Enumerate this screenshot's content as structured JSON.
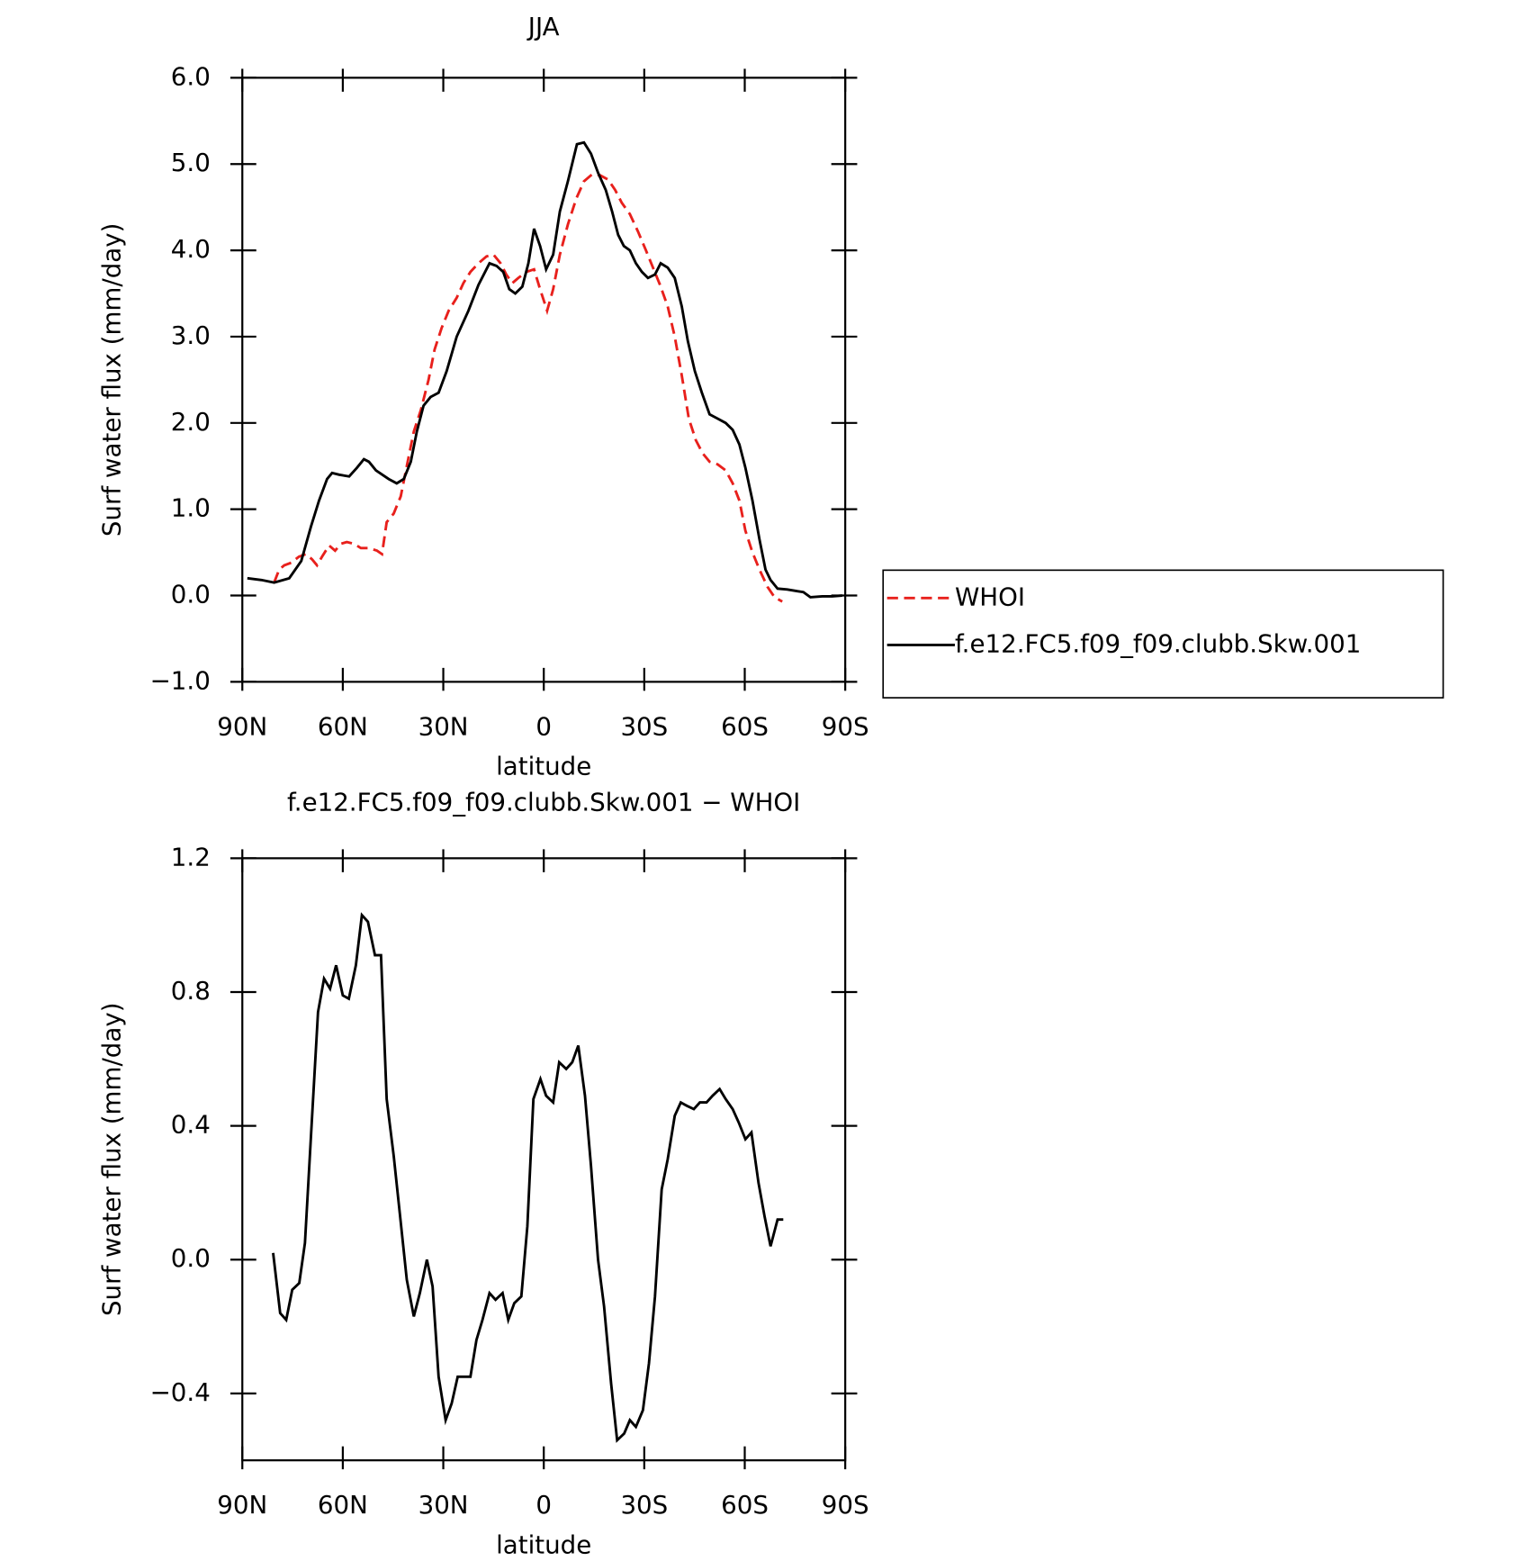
{
  "chart_data": [
    {
      "type": "line",
      "title": "JJA",
      "xlabel": "latitude",
      "ylabel": "Surf water flux (mm/day)",
      "xlim": [
        90,
        -90
      ],
      "xticks": [
        {
          "value": 90,
          "label": "90N"
        },
        {
          "value": 60,
          "label": "60N"
        },
        {
          "value": 30,
          "label": "30N"
        },
        0,
        {
          "value": -30,
          "label": "30S"
        },
        {
          "value": -60,
          "label": "60S"
        },
        {
          "value": -90,
          "label": "90S"
        }
      ],
      "ylim": [
        -1,
        6
      ],
      "yticks": [
        {
          "value": -1,
          "label": "−1.0"
        },
        {
          "value": 0,
          "label": "0.0"
        },
        {
          "value": 1,
          "label": "1.0"
        },
        {
          "value": 2,
          "label": "2.0"
        },
        {
          "value": 3,
          "label": "3.0"
        },
        {
          "value": 4,
          "label": "4.0"
        },
        {
          "value": 5,
          "label": "5.0"
        },
        {
          "value": 6,
          "label": "6.0"
        }
      ],
      "legend": "outside-right",
      "series": [
        {
          "name": "WHOI",
          "color": "#e8201c",
          "line_style": "dashed",
          "x": [
            80.5,
            79.0,
            77.5,
            75.4,
            73.1,
            71.0,
            69.2,
            67.7,
            66.2,
            64.1,
            62.3,
            60.5,
            58.8,
            56.7,
            54.6,
            52.2,
            49.8,
            48.3,
            46.9,
            44.8,
            42.7,
            40.9,
            38.8,
            36.7,
            34.4,
            32.6,
            30.5,
            28.4,
            26.0,
            24.0,
            21.9,
            19.5,
            17.1,
            15.0,
            12.9,
            11.2,
            9.4,
            7.6,
            5.2,
            2.9,
            1.1,
            -1.0,
            -2.8,
            -4.8,
            -7.2,
            -9.7,
            -12.0,
            -14.4,
            -16.8,
            -19.2,
            -21.3,
            -23.3,
            -25.7,
            -28.1,
            -30.5,
            -32.6,
            -34.7,
            -37.0,
            -39.1,
            -41.2,
            -43.3,
            -45.4,
            -47.4,
            -49.5,
            -51.9,
            -54.3,
            -56.4,
            -58.4,
            -60.2,
            -62.3,
            -64.4,
            -66.8,
            -68.9,
            -71.2
          ],
          "values": [
            0.15,
            0.3,
            0.35,
            0.38,
            0.45,
            0.48,
            0.42,
            0.35,
            0.45,
            0.58,
            0.52,
            0.6,
            0.62,
            0.6,
            0.55,
            0.55,
            0.52,
            0.48,
            0.85,
            0.95,
            1.15,
            1.5,
            1.9,
            2.15,
            2.5,
            2.85,
            3.1,
            3.3,
            3.45,
            3.62,
            3.75,
            3.85,
            3.93,
            3.95,
            3.85,
            3.72,
            3.62,
            3.68,
            3.75,
            3.78,
            3.55,
            3.3,
            3.55,
            3.95,
            4.3,
            4.6,
            4.8,
            4.88,
            4.87,
            4.82,
            4.7,
            4.55,
            4.42,
            4.22,
            4.0,
            3.8,
            3.6,
            3.35,
            3.0,
            2.55,
            2.05,
            1.8,
            1.65,
            1.55,
            1.52,
            1.45,
            1.3,
            1.1,
            0.75,
            0.5,
            0.3,
            0.1,
            -0.02,
            -0.07
          ]
        },
        {
          "name": "f.e12.FC5.f09_f09.clubb.Skw.001",
          "color": "#000000",
          "line_style": "solid",
          "x": [
            88.5,
            84.3,
            80.5,
            76.0,
            72.4,
            69.5,
            67.1,
            64.7,
            63.2,
            61.1,
            58.1,
            55.8,
            53.7,
            52.2,
            50.1,
            46.3,
            43.9,
            41.8,
            39.7,
            37.9,
            35.9,
            33.8,
            31.4,
            29.0,
            26.0,
            22.5,
            19.5,
            16.2,
            14.1,
            12.1,
            10.3,
            8.5,
            6.4,
            4.6,
            2.9,
            1.1,
            -0.7,
            -2.8,
            -4.8,
            -7.2,
            -9.9,
            -12.0,
            -14.1,
            -16.2,
            -18.5,
            -20.4,
            -22.2,
            -23.9,
            -25.7,
            -27.5,
            -29.3,
            -31.1,
            -33.2,
            -34.9,
            -37.0,
            -39.1,
            -41.2,
            -43.0,
            -45.1,
            -47.2,
            -49.5,
            -51.9,
            -54.3,
            -56.4,
            -58.4,
            -60.2,
            -62.3,
            -64.4,
            -66.2,
            -67.7,
            -69.8,
            -72.7,
            -75.7,
            -77.5,
            -79.6,
            -83.1,
            -86.1,
            -89.1
          ],
          "values": [
            0.2,
            0.18,
            0.15,
            0.2,
            0.4,
            0.8,
            1.1,
            1.35,
            1.42,
            1.4,
            1.38,
            1.48,
            1.58,
            1.55,
            1.45,
            1.35,
            1.3,
            1.35,
            1.55,
            1.9,
            2.2,
            2.3,
            2.35,
            2.6,
            3.0,
            3.3,
            3.6,
            3.85,
            3.82,
            3.75,
            3.55,
            3.5,
            3.58,
            3.85,
            4.25,
            4.05,
            3.78,
            3.95,
            4.45,
            4.8,
            5.23,
            5.25,
            5.12,
            4.9,
            4.7,
            4.45,
            4.18,
            4.05,
            4.0,
            3.85,
            3.75,
            3.68,
            3.72,
            3.85,
            3.8,
            3.68,
            3.35,
            2.95,
            2.6,
            2.35,
            2.1,
            2.05,
            2.0,
            1.92,
            1.75,
            1.48,
            1.1,
            0.65,
            0.3,
            0.18,
            0.08,
            0.07,
            0.05,
            0.04,
            -0.02,
            -0.01,
            -0.01,
            0.0
          ]
        }
      ]
    },
    {
      "type": "line",
      "title": "f.e12.FC5.f09_f09.clubb.Skw.001 − WHOI",
      "xlabel": "latitude",
      "ylabel": "Surf water flux (mm/day)",
      "xlim": [
        90,
        -90
      ],
      "xticks": [
        {
          "value": 90,
          "label": "90N"
        },
        {
          "value": 60,
          "label": "60N"
        },
        {
          "value": 30,
          "label": "30N"
        },
        0,
        {
          "value": -30,
          "label": "30S"
        },
        {
          "value": -60,
          "label": "60S"
        },
        {
          "value": -90,
          "label": "90S"
        }
      ],
      "ylim": [
        -0.6,
        1.2
      ],
      "yticks": [
        {
          "value": -0.4,
          "label": "−0.4"
        },
        {
          "value": 0,
          "label": "0.0"
        },
        0.4,
        0.8,
        1.2
      ],
      "series": [
        {
          "color": "#000000",
          "line_style": "solid",
          "x": [
            80.8,
            78.7,
            76.9,
            75.1,
            73.0,
            71.3,
            69.5,
            67.4,
            65.6,
            63.8,
            62.0,
            60.0,
            58.2,
            56.1,
            54.3,
            52.5,
            50.4,
            48.6,
            46.9,
            44.8,
            43.0,
            40.9,
            38.8,
            37.0,
            34.9,
            33.2,
            31.4,
            29.3,
            27.5,
            25.7,
            24.0,
            21.9,
            20.1,
            18.3,
            16.2,
            14.4,
            12.3,
            10.6,
            8.8,
            6.7,
            4.9,
            3.1,
            1.0,
            -0.7,
            -2.8,
            -4.6,
            -6.7,
            -8.5,
            -10.3,
            -12.3,
            -14.1,
            -16.2,
            -18.0,
            -20.1,
            -21.9,
            -24.0,
            -25.7,
            -27.5,
            -29.6,
            -31.4,
            -33.2,
            -35.2,
            -37.0,
            -39.1,
            -40.9,
            -42.7,
            -44.8,
            -46.6,
            -48.6,
            -50.4,
            -52.5,
            -54.3,
            -56.4,
            -58.2,
            -60.2,
            -62.0,
            -64.1,
            -65.9,
            -67.7,
            -69.8,
            -71.5
          ],
          "values": [
            0.02,
            -0.16,
            -0.18,
            -0.09,
            -0.07,
            0.05,
            0.37,
            0.74,
            0.84,
            0.81,
            0.88,
            0.79,
            0.78,
            0.88,
            1.03,
            1.01,
            0.91,
            0.91,
            0.48,
            0.31,
            0.14,
            -0.06,
            -0.17,
            -0.1,
            0.0,
            -0.08,
            -0.35,
            -0.48,
            -0.43,
            -0.35,
            -0.35,
            -0.35,
            -0.24,
            -0.18,
            -0.1,
            -0.12,
            -0.1,
            -0.18,
            -0.13,
            -0.11,
            0.1,
            0.48,
            0.54,
            0.49,
            0.47,
            0.59,
            0.57,
            0.59,
            0.64,
            0.49,
            0.28,
            0.0,
            -0.14,
            -0.37,
            -0.54,
            -0.52,
            -0.48,
            -0.5,
            -0.45,
            -0.31,
            -0.11,
            0.21,
            0.3,
            0.43,
            0.47,
            0.46,
            0.45,
            0.47,
            0.47,
            0.49,
            0.51,
            0.48,
            0.45,
            0.41,
            0.36,
            0.38,
            0.23,
            0.13,
            0.04,
            0.12,
            0.12
          ]
        }
      ]
    }
  ]
}
